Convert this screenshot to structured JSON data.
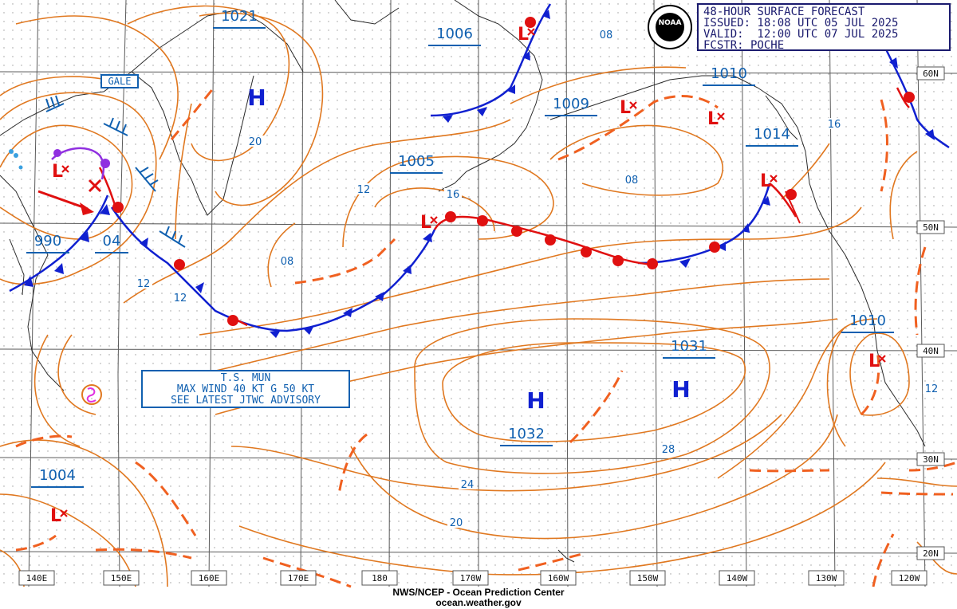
{
  "header": {
    "line1": "48-HOUR SURFACE FORECAST",
    "line2": "ISSUED: 18:08 UTC 05 JUL 2025",
    "line3": "VALID:  12:00 UTC 07 JUL 2025",
    "line4": "FCSTR: POCHE",
    "logo_text": "NOAA"
  },
  "footer": {
    "line1": "NWS/NCEP - Ocean Prediction Center",
    "line2": "ocean.weather.gov"
  },
  "advisory": {
    "line1": "T.S. MUN",
    "line2": "MAX WIND 40 KT G 50 KT",
    "line3": "SEE LATEST JTWC ADVISORY"
  },
  "gale_label": "GALE",
  "colors": {
    "isobar": "#e07820",
    "label_blue": "#1060b0",
    "cold_front": "#1020d0",
    "warm_front": "#e01010",
    "trough": "#f06020",
    "occluded": "#9030e0",
    "grid": "#555555",
    "coast": "#333333",
    "high": "#1020d0",
    "low": "#e01010"
  },
  "lon_labels": [
    "140E",
    "150E",
    "160E",
    "170E",
    "180",
    "170W",
    "160W",
    "150W",
    "140W",
    "130W",
    "120W"
  ],
  "lat_labels": [
    "60N",
    "50N",
    "40N",
    "30N",
    "20N"
  ],
  "pressure_labels": [
    "1021",
    "1006",
    "1009",
    "1010",
    "1014",
    "1005",
    "990",
    "04",
    "1031",
    "1032",
    "1010",
    "1004"
  ],
  "contour_labels": [
    "08",
    "20",
    "12",
    "16",
    "08",
    "12",
    "16",
    "08",
    "12",
    "24",
    "28",
    "20",
    "12"
  ],
  "highs": [
    "H",
    "H",
    "H"
  ],
  "lows": [
    "L",
    "L",
    "L",
    "L",
    "L",
    "L",
    "L"
  ]
}
